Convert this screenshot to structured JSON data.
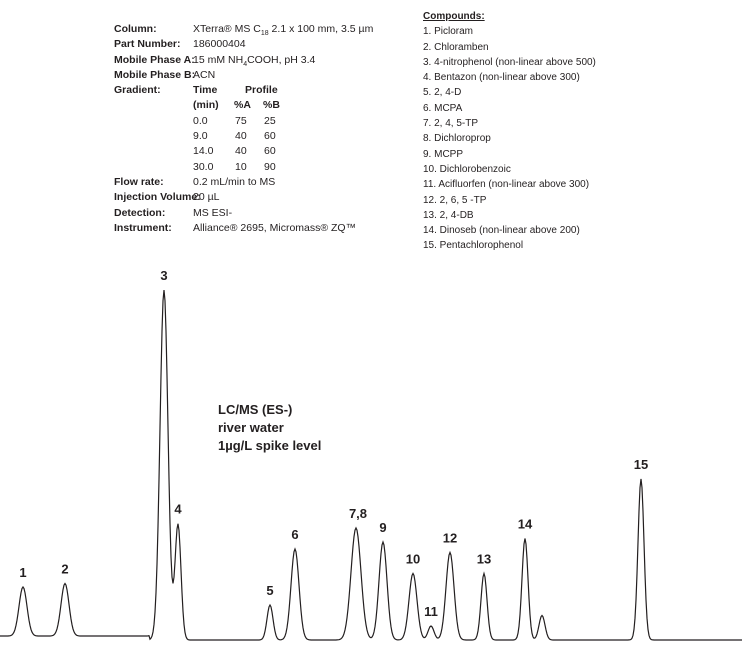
{
  "conditions": {
    "column": {
      "label": "Column:",
      "value": "XTerra® MS C18 2.1 x 100 mm, 3.5 µm"
    },
    "part_number": {
      "label": "Part Number:",
      "value": "186000404"
    },
    "mobile_phase_a": {
      "label": "Mobile Phase A:",
      "value": "15 mM NH4COOH, pH 3.4"
    },
    "mobile_phase_b": {
      "label": "Mobile Phase B:",
      "value": "ACN"
    },
    "gradient": {
      "label": "Gradient:",
      "header_time": "Time",
      "header_profile": "Profile",
      "header_min": "(min)",
      "header_a": "%A",
      "header_b": "%B",
      "rows": [
        {
          "time": "0.0",
          "a": "75",
          "b": "25"
        },
        {
          "time": "9.0",
          "a": "40",
          "b": "60"
        },
        {
          "time": "14.0",
          "a": "40",
          "b": "60"
        },
        {
          "time": "30.0",
          "a": "10",
          "b": "90"
        }
      ]
    },
    "flow_rate": {
      "label": "Flow rate:",
      "value": "0.2 mL/min to MS"
    },
    "injection_volume": {
      "label": "Injection Volume:",
      "value": "20 µL"
    },
    "detection": {
      "label": "Detection:",
      "value": "MS ESI-"
    },
    "instrument": {
      "label": "Instrument:",
      "value": "Alliance® 2695, Micromass® ZQ™"
    }
  },
  "compounds": {
    "title": "Compounds:",
    "items": [
      "1.  Picloram",
      "2.  Chloramben",
      "3.  4-nitrophenol (non-linear above 500)",
      "4.  Bentazon (non-linear above 300)",
      "5.  2, 4-D",
      "6.  MCPA",
      "7.  2, 4, 5-TP",
      "8.  Dichloroprop",
      "9.  MCPP",
      "10.  Dichlorobenzoic",
      "11.  Acifluorfen (non-linear above 300)",
      "12.  2, 6, 5 -TP",
      "13.  2, 4-DB",
      "14.  Dinoseb (non-linear above 200)",
      "15.  Pentachlorophenol"
    ]
  },
  "annotation": [
    "LC/MS (ES-)",
    "river water",
    "1µg/L spike level"
  ],
  "chart_data": {
    "type": "line",
    "title": "",
    "xlabel": "",
    "ylabel": "",
    "grid": false,
    "peaks": [
      {
        "label": "1",
        "relative_intensity": 0.14
      },
      {
        "label": "2",
        "relative_intensity": 0.15
      },
      {
        "label": "3",
        "relative_intensity": 1.0
      },
      {
        "label": "4",
        "relative_intensity": 0.33
      },
      {
        "label": "5",
        "relative_intensity": 0.1
      },
      {
        "label": "6",
        "relative_intensity": 0.26
      },
      {
        "label": "7,8",
        "relative_intensity": 0.32
      },
      {
        "label": "9",
        "relative_intensity": 0.28
      },
      {
        "label": "10",
        "relative_intensity": 0.19
      },
      {
        "label": "11",
        "relative_intensity": 0.04
      },
      {
        "label": "12",
        "relative_intensity": 0.25
      },
      {
        "label": "13",
        "relative_intensity": 0.19
      },
      {
        "label": "14",
        "relative_intensity": 0.29
      },
      {
        "label": "",
        "relative_intensity": 0.07
      },
      {
        "label": "15",
        "relative_intensity": 0.46
      }
    ],
    "line_color": "#231f20"
  }
}
